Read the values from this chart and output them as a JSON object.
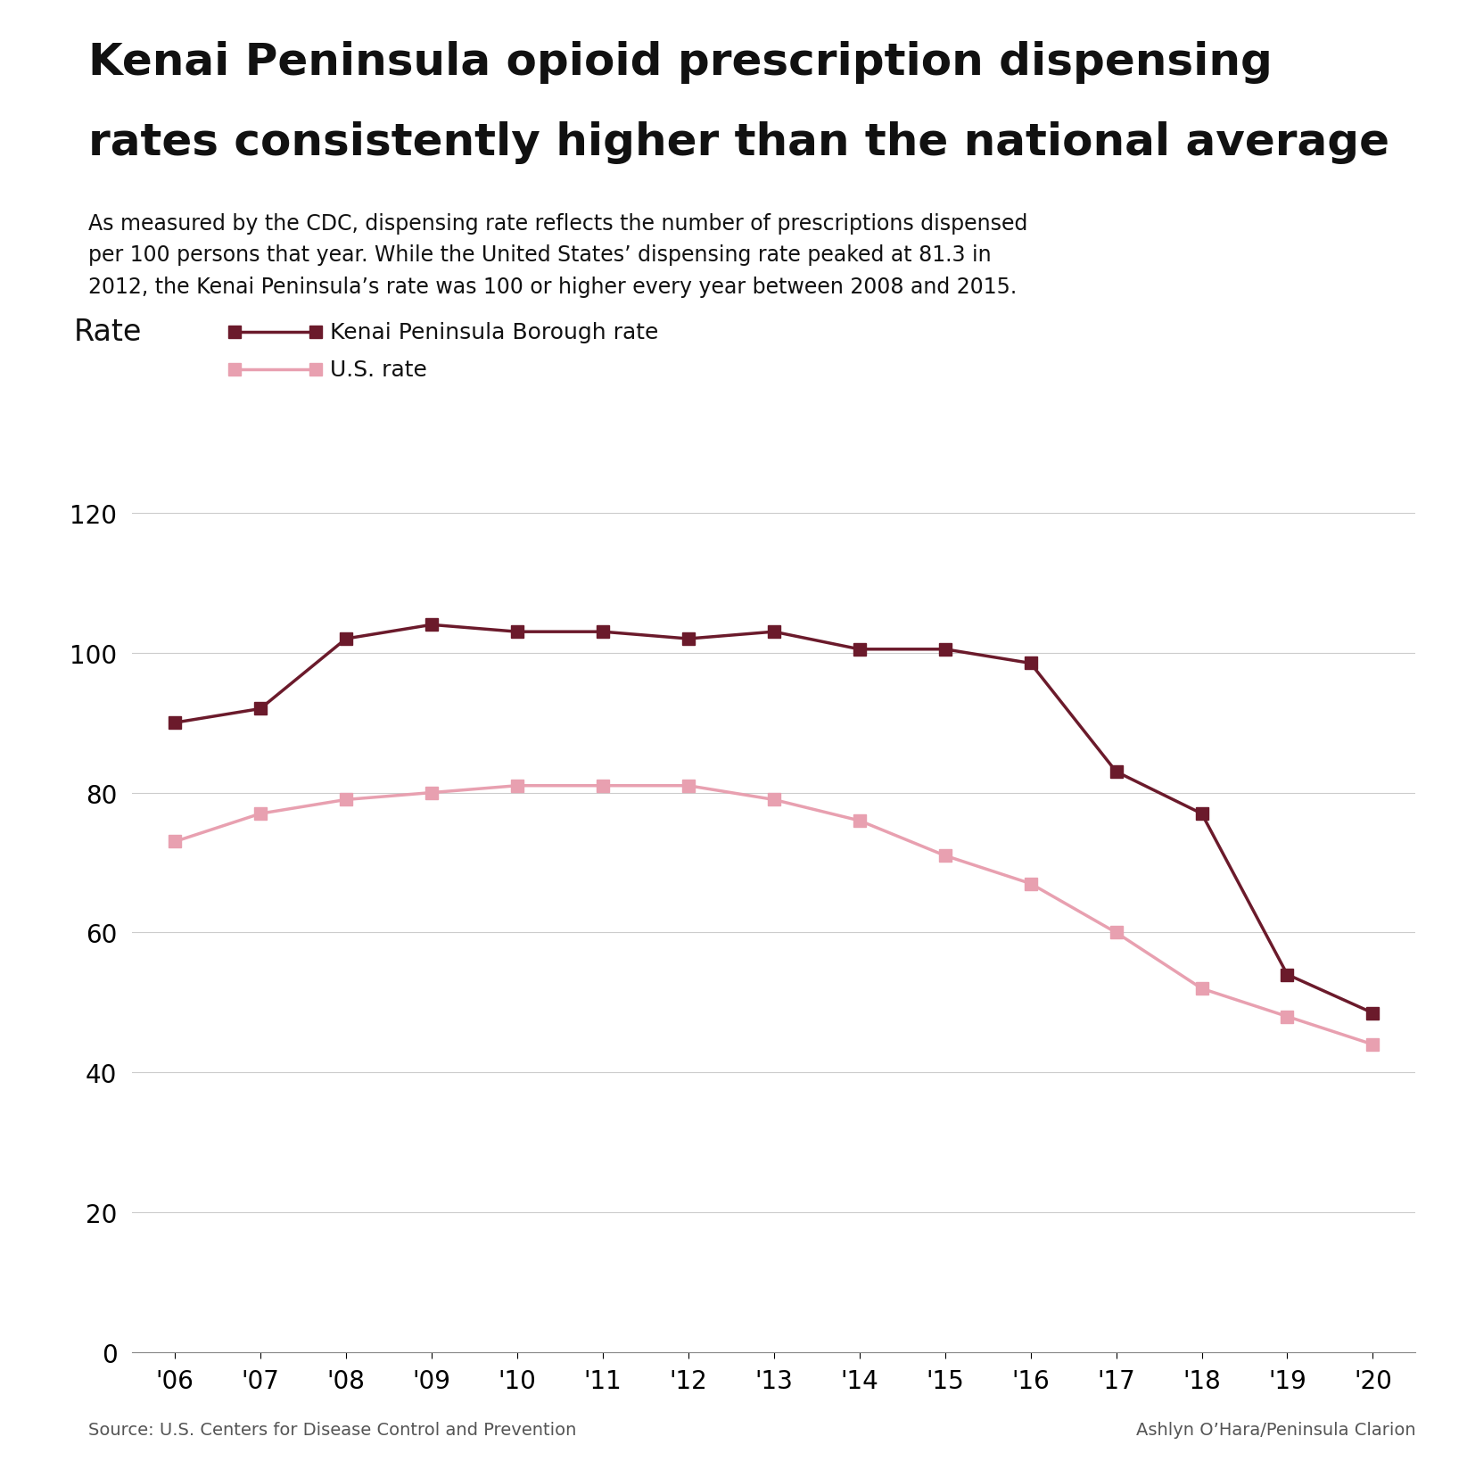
{
  "title_line1": "Kenai Peninsula opioid prescription dispensing",
  "title_line2": "rates consistently higher than the national average",
  "subtitle": "As measured by the CDC, dispensing rate reflects the number of prescriptions dispensed\nper 100 persons that year. While the United States’ dispensing rate peaked at 81.3 in\n2012, the Kenai Peninsula’s rate was 100 or higher every year between 2008 and 2015.",
  "ylabel": "Rate",
  "years": [
    2006,
    2007,
    2008,
    2009,
    2010,
    2011,
    2012,
    2013,
    2014,
    2015,
    2016,
    2017,
    2018,
    2019,
    2020
  ],
  "kenai_values": [
    90,
    92,
    102,
    104,
    103,
    103,
    102,
    103,
    100.5,
    100.5,
    98.5,
    83,
    77,
    54,
    48.5
  ],
  "us_values": [
    73,
    77,
    79,
    80,
    81,
    81,
    81,
    79,
    76,
    71,
    67,
    60,
    52,
    48,
    44
  ],
  "kenai_color": "#6B1A2B",
  "us_color": "#E8A0B0",
  "kenai_label": "Kenai Peninsula Borough rate",
  "us_label": "U.S. rate",
  "ylim": [
    0,
    130
  ],
  "yticks": [
    0,
    20,
    40,
    60,
    80,
    100,
    120
  ],
  "source_text": "Source: U.S. Centers for Disease Control and Prevention",
  "credit_text": "Ashlyn O’Hara/Peninsula Clarion",
  "background_color": "#FFFFFF",
  "title_fontsize": 36,
  "subtitle_fontsize": 17,
  "axis_label_fontsize": 24,
  "tick_fontsize": 20,
  "legend_fontsize": 18,
  "footer_fontsize": 14,
  "line_width": 2.5,
  "marker_size": 10
}
